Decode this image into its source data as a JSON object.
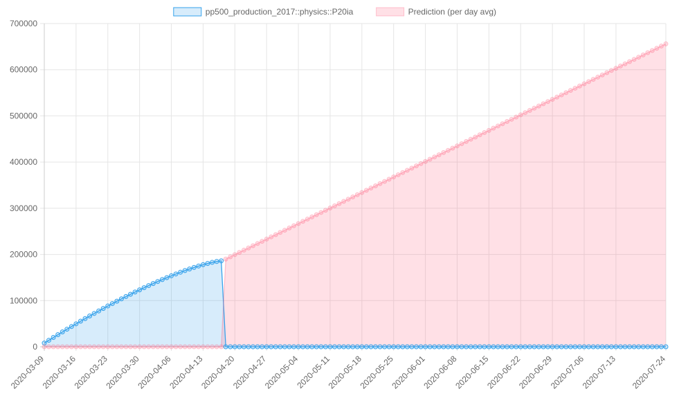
{
  "chart_data": {
    "type": "area",
    "x_start": "2020-03-09",
    "x_end": "2020-07-24",
    "x_tick_labels": [
      "2020-03-09",
      "2020-03-16",
      "2020-03-23",
      "2020-03-30",
      "2020-04-06",
      "2020-04-13",
      "2020-04-20",
      "2020-04-27",
      "2020-05-04",
      "2020-05-11",
      "2020-05-18",
      "2020-05-25",
      "2020-06-01",
      "2020-06-08",
      "2020-06-15",
      "2020-06-22",
      "2020-06-29",
      "2020-07-06",
      "2020-07-13",
      "2020-07-24"
    ],
    "y_ticks": [
      0,
      100000,
      200000,
      300000,
      400000,
      500000,
      600000,
      700000
    ],
    "ylim": [
      0,
      700000
    ],
    "grid": true,
    "legend_position": "top",
    "series": [
      {
        "name": "pp500_production_2017::physics::P20ia",
        "color": "#36a2eb",
        "fill": "rgba(54,162,235,0.2)",
        "segments": [
          {
            "from": "2020-03-09",
            "to": "2020-04-17",
            "start_value": 8000,
            "end_value": 186000,
            "shape": "concave"
          },
          {
            "from": "2020-04-18",
            "to": "2020-07-24",
            "value": 0
          }
        ]
      },
      {
        "name": "Prediction (per day avg)",
        "color": "#ff6384",
        "fill": "rgba(255,99,132,0.2)",
        "segments": [
          {
            "from": "2020-03-09",
            "to": "2020-04-17",
            "value": 0
          },
          {
            "from": "2020-04-18",
            "to": "2020-07-24",
            "start_value": 190000,
            "end_value": 656000,
            "shape": "linear"
          }
        ]
      }
    ]
  }
}
